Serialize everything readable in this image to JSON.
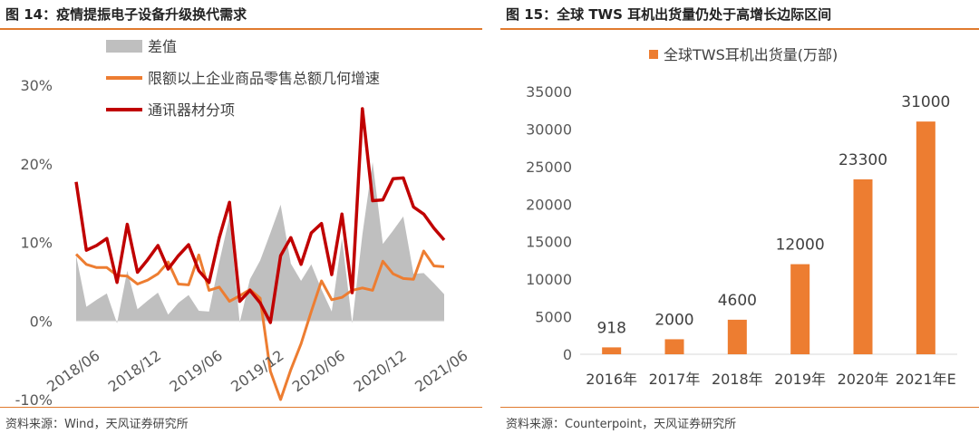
{
  "left": {
    "title": "图 14：疫情提振电子设备升级换代需求",
    "source": "资料来源：Wind，天风证券研究所"
  },
  "right": {
    "title": "图 15：全球 TWS 耳机出货量仍处于高增长边际区间",
    "source": "资料来源：Counterpoint，天风证券研究所"
  },
  "chart_data": [
    {
      "type": "line",
      "title": "",
      "xlabel": "",
      "ylabel": "",
      "ylim": [
        -10,
        30
      ],
      "yticks": [
        "30%",
        "20%",
        "10%",
        "0%",
        "-10%"
      ],
      "ytick_values": [
        30,
        20,
        10,
        0,
        -10
      ],
      "xtick_labels": [
        "2018/06",
        "2018/12",
        "2019/06",
        "2019/12",
        "2020/06",
        "2020/12",
        "2021/06"
      ],
      "x": [
        "2018/06",
        "2018/07",
        "2018/08",
        "2018/09",
        "2018/10",
        "2018/11",
        "2018/12",
        "2019/01",
        "2019/02",
        "2019/03",
        "2019/04",
        "2019/05",
        "2019/06",
        "2019/07",
        "2019/08",
        "2019/09",
        "2019/10",
        "2019/11",
        "2019/12",
        "2020/01",
        "2020/02",
        "2020/03",
        "2020/04",
        "2020/05",
        "2020/06",
        "2020/07",
        "2020/08",
        "2020/09",
        "2020/10",
        "2020/11",
        "2020/12",
        "2021/01",
        "2021/02",
        "2021/03",
        "2021/04",
        "2021/05",
        "2021/06"
      ],
      "legend_position": "top-left",
      "grid": false,
      "series": [
        {
          "name": "差值",
          "kind": "area",
          "color": "#bfbfbf",
          "values": [
            8.3,
            1.8,
            2.7,
            3.5,
            -0.3,
            6.4,
            1.5,
            2.6,
            3.6,
            0.8,
            2.3,
            3.3,
            1.3,
            1.2,
            7.5,
            13.2,
            -0.2,
            5.3,
            7.7,
            11.2,
            14.8,
            7.3,
            5.1,
            7.2,
            4.0,
            1.2,
            10.5,
            -0.3,
            11.0,
            20.2,
            9.8,
            11.5,
            13.3,
            6.0,
            6.1,
            4.8,
            3.4
          ]
        },
        {
          "name": "限额以上企业商品零售总额几何增速",
          "kind": "line",
          "color": "#ed7d31",
          "values": [
            8.5,
            7.2,
            6.8,
            6.8,
            5.8,
            5.7,
            4.7,
            5.2,
            6.0,
            7.5,
            4.7,
            4.6,
            8.4,
            3.9,
            4.3,
            2.5,
            3.2,
            4.0,
            2.9,
            -6.4,
            -10.0,
            -6.2,
            -2.9,
            1.2,
            5.1,
            2.7,
            3.0,
            3.9,
            4.2,
            3.9,
            7.6,
            6.0,
            5.4,
            5.3,
            8.9,
            7.0,
            6.9
          ]
        },
        {
          "name": "通讯器材分项",
          "kind": "line",
          "color": "#c00000",
          "values": [
            17.7,
            9.0,
            9.6,
            10.5,
            4.9,
            12.3,
            6.2,
            7.8,
            9.6,
            6.6,
            8.3,
            9.7,
            6.4,
            4.9,
            10.6,
            15.1,
            2.5,
            3.9,
            2.3,
            -0.2,
            8.3,
            10.6,
            7.2,
            11.2,
            12.4,
            5.9,
            13.6,
            3.6,
            27.0,
            15.3,
            15.4,
            18.1,
            18.2,
            14.5,
            13.6,
            11.8,
            10.3
          ]
        }
      ]
    },
    {
      "type": "bar",
      "title": "",
      "xlabel": "",
      "ylabel": "",
      "ylim": [
        0,
        35000
      ],
      "yticks": [
        "35000",
        "30000",
        "25000",
        "20000",
        "15000",
        "10000",
        "5000",
        "0"
      ],
      "ytick_values": [
        35000,
        30000,
        25000,
        20000,
        15000,
        10000,
        5000,
        0
      ],
      "categories": [
        "2016年",
        "2017年",
        "2018年",
        "2019年",
        "2020年",
        "2021年E"
      ],
      "legend_position": "top-center",
      "grid": false,
      "series": [
        {
          "name": "全球TWS耳机出货量(万部)",
          "color": "#ed7d31",
          "values": [
            918,
            2000,
            4600,
            12000,
            23300,
            31000
          ],
          "labels": [
            "918",
            "2000",
            "4600",
            "12000",
            "23300",
            "31000"
          ]
        }
      ]
    }
  ]
}
